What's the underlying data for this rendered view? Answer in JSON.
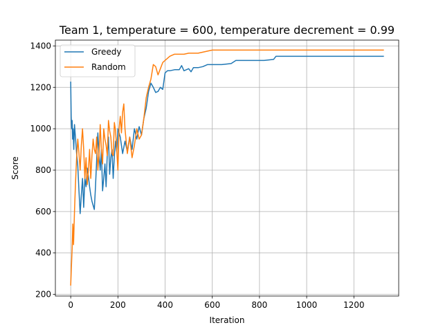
{
  "chart_data": {
    "type": "line",
    "title": "Team 1, temperature = 600, temperature decrement = 0.99",
    "xlabel": "Iteration",
    "ylabel": "Score",
    "xlim": [
      -65,
      1390
    ],
    "ylim": [
      192,
      1428
    ],
    "xticks": [
      0,
      200,
      400,
      600,
      800,
      1000,
      1200
    ],
    "yticks": [
      200,
      400,
      600,
      800,
      1000,
      1200,
      1400
    ],
    "grid": true,
    "legend_position": "upper-left",
    "series": [
      {
        "name": "Greedy",
        "color": "#1f77b4",
        "x": [
          0,
          2,
          4,
          6,
          8,
          10,
          13,
          16,
          20,
          25,
          30,
          35,
          40,
          45,
          50,
          55,
          60,
          65,
          70,
          75,
          80,
          85,
          90,
          95,
          100,
          105,
          110,
          115,
          120,
          125,
          130,
          135,
          140,
          145,
          150,
          155,
          160,
          165,
          170,
          175,
          180,
          185,
          190,
          195,
          200,
          210,
          220,
          230,
          240,
          250,
          260,
          270,
          280,
          290,
          300,
          310,
          320,
          330,
          340,
          350,
          360,
          370,
          380,
          390,
          400,
          410,
          420,
          440,
          460,
          470,
          480,
          500,
          510,
          520,
          540,
          560,
          580,
          600,
          640,
          680,
          700,
          760,
          820,
          860,
          870,
          900,
          1000,
          1100,
          1200,
          1325
        ],
        "y": [
          1225,
          1060,
          1000,
          1040,
          950,
          1000,
          900,
          1020,
          960,
          880,
          820,
          700,
          590,
          680,
          760,
          620,
          760,
          720,
          810,
          770,
          720,
          680,
          650,
          630,
          610,
          720,
          850,
          980,
          870,
          800,
          900,
          700,
          760,
          830,
          720,
          880,
          960,
          780,
          860,
          900,
          760,
          870,
          940,
          890,
          1000,
          960,
          880,
          940,
          890,
          960,
          900,
          1000,
          950,
          1010,
          970,
          1050,
          1100,
          1180,
          1220,
          1200,
          1175,
          1180,
          1200,
          1190,
          1270,
          1280,
          1280,
          1285,
          1285,
          1305,
          1280,
          1290,
          1275,
          1295,
          1295,
          1300,
          1310,
          1310,
          1310,
          1315,
          1330,
          1330,
          1330,
          1335,
          1350,
          1350,
          1350,
          1350,
          1350,
          1350
        ]
      },
      {
        "name": "Random",
        "color": "#ff7f0e",
        "x": [
          0,
          3,
          6,
          9,
          12,
          16,
          20,
          25,
          30,
          35,
          40,
          45,
          50,
          55,
          60,
          65,
          70,
          75,
          80,
          85,
          90,
          95,
          100,
          105,
          110,
          115,
          120,
          125,
          130,
          135,
          140,
          145,
          150,
          155,
          160,
          165,
          170,
          175,
          180,
          185,
          190,
          195,
          200,
          205,
          210,
          215,
          220,
          225,
          230,
          240,
          250,
          260,
          270,
          280,
          290,
          300,
          310,
          320,
          330,
          340,
          350,
          360,
          370,
          380,
          390,
          400,
          420,
          440,
          460,
          480,
          500,
          520,
          540,
          560,
          580,
          600,
          640,
          700,
          800,
          900,
          1000,
          1100,
          1200,
          1325
        ],
        "y": [
          245,
          335,
          420,
          540,
          440,
          600,
          730,
          860,
          950,
          880,
          800,
          920,
          1000,
          900,
          760,
          860,
          730,
          800,
          900,
          760,
          870,
          950,
          900,
          880,
          960,
          800,
          880,
          1020,
          900,
          830,
          1000,
          950,
          920,
          870,
          1040,
          990,
          960,
          880,
          870,
          1030,
          990,
          900,
          800,
          1000,
          1060,
          980,
          1080,
          1120,
          1000,
          880,
          960,
          860,
          920,
          1000,
          950,
          970,
          1050,
          1150,
          1200,
          1240,
          1310,
          1300,
          1260,
          1290,
          1320,
          1330,
          1350,
          1360,
          1360,
          1360,
          1365,
          1365,
          1365,
          1370,
          1375,
          1380,
          1380,
          1380,
          1380,
          1380,
          1380,
          1380,
          1380,
          1380
        ]
      }
    ]
  }
}
